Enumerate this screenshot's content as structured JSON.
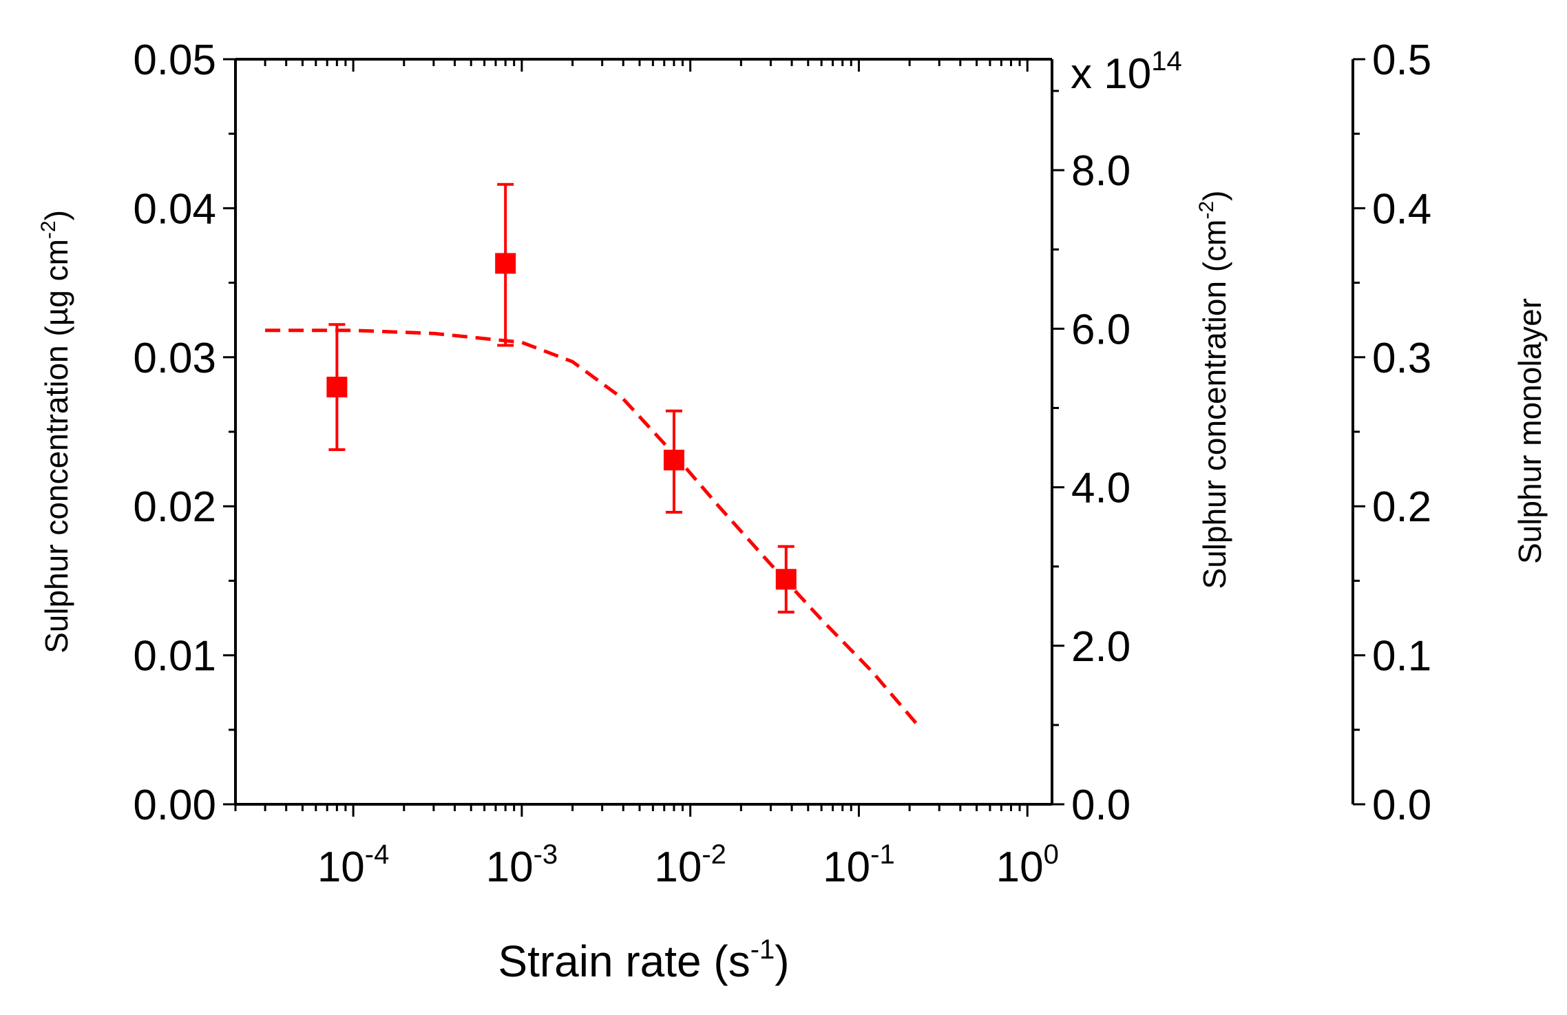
{
  "chart_data": {
    "type": "scatter",
    "title": "",
    "x_axis": {
      "label": "Strain rate (s",
      "label_sup": "-1",
      "label_end": ")",
      "scale": "log",
      "range": [
        2e-05,
        1.4
      ],
      "tick_labels": [
        {
          "base": "10",
          "exp": "-4",
          "value": 0.0001
        },
        {
          "base": "10",
          "exp": "-3",
          "value": 0.001
        },
        {
          "base": "10",
          "exp": "-2",
          "value": 0.01
        },
        {
          "base": "10",
          "exp": "-1",
          "value": 0.1
        },
        {
          "base": "10",
          "exp": "0",
          "value": 1
        }
      ]
    },
    "y_left": {
      "label": "Sulphur concentration (µg cm",
      "label_sup": "-2",
      "label_end": ")",
      "range": [
        0,
        0.05
      ],
      "tick_labels": [
        "0.00",
        "0.01",
        "0.02",
        "0.03",
        "0.04",
        "0.05"
      ]
    },
    "y_right1": {
      "label": "Sulphur concentration (cm",
      "label_sup": "-2",
      "label_end": ")",
      "multiplier_prefix": "x 10",
      "multiplier_exp": "14",
      "range": [
        0,
        9.4
      ],
      "tick_labels": [
        "0.0",
        "2.0",
        "4.0",
        "6.0",
        "8.0"
      ]
    },
    "y_right2": {
      "label": "Sulphur monolayer",
      "range": [
        0,
        0.5
      ],
      "tick_labels": [
        "0.0",
        "0.1",
        "0.2",
        "0.3",
        "0.4",
        "0.5"
      ]
    },
    "series": [
      {
        "kind": "points",
        "marker": "square",
        "color": "#ff0000",
        "points": [
          {
            "x": 8e-05,
            "y": 0.028,
            "err_low": 0.0238,
            "err_high": 0.0322
          },
          {
            "x": 0.0008,
            "y": 0.0363,
            "err_low": 0.0308,
            "err_high": 0.0416
          },
          {
            "x": 0.008,
            "y": 0.0231,
            "err_low": 0.0196,
            "err_high": 0.0264
          },
          {
            "x": 0.037,
            "y": 0.0151,
            "err_low": 0.0129,
            "err_high": 0.0173
          }
        ]
      },
      {
        "kind": "fit",
        "style": "dashed",
        "color": "#ff0000",
        "points": [
          {
            "x": 3e-05,
            "y": 0.0318
          },
          {
            "x": 0.0001,
            "y": 0.0318
          },
          {
            "x": 0.0003,
            "y": 0.0316
          },
          {
            "x": 0.001,
            "y": 0.031
          },
          {
            "x": 0.002,
            "y": 0.0297
          },
          {
            "x": 0.004,
            "y": 0.0272
          },
          {
            "x": 0.008,
            "y": 0.0235
          },
          {
            "x": 0.015,
            "y": 0.0199
          },
          {
            "x": 0.03,
            "y": 0.0161
          },
          {
            "x": 0.06,
            "y": 0.0124
          },
          {
            "x": 0.12,
            "y": 0.0089
          },
          {
            "x": 0.22,
            "y": 0.0054
          }
        ]
      }
    ]
  }
}
